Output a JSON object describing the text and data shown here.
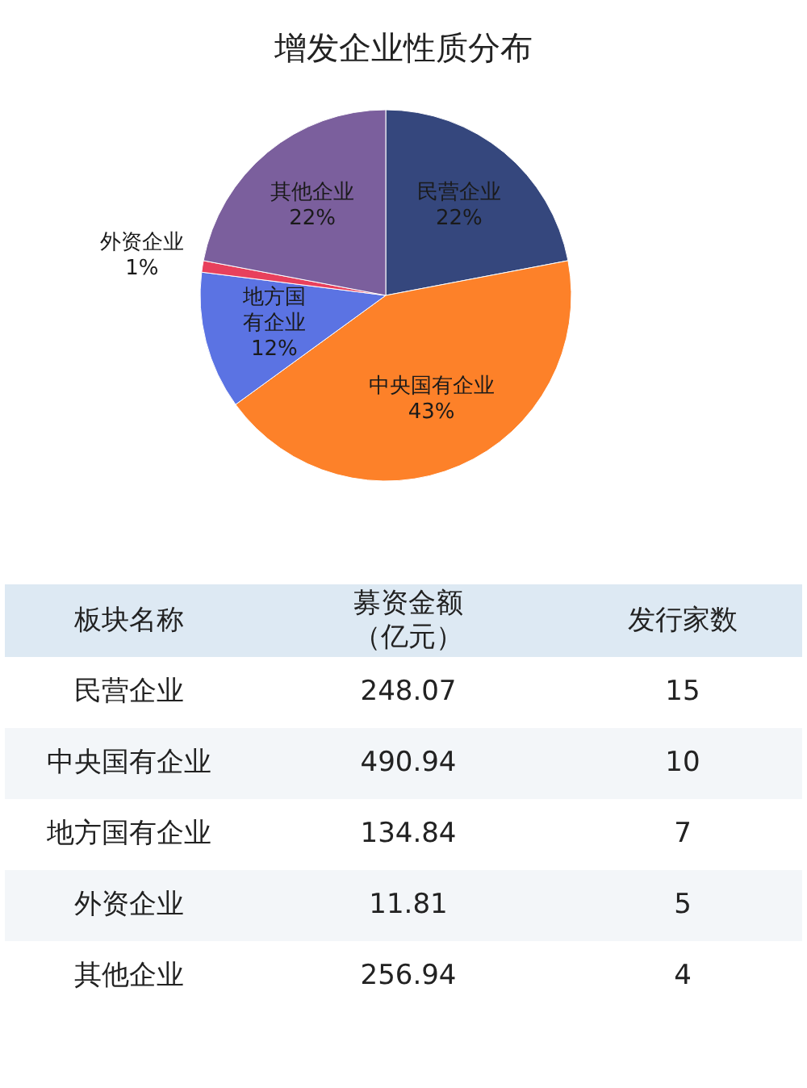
{
  "chart_data": [
    {
      "type": "pie",
      "title": "增发企业性质分布",
      "categories": [
        "民营企业",
        "中央国有企业",
        "地方国有企业",
        "外资企业",
        "其他企业"
      ],
      "values": [
        22,
        43,
        12,
        1,
        22
      ],
      "value_labels": [
        "22%",
        "43%",
        "12%",
        "1%",
        "22%"
      ],
      "colors": [
        "#35477d",
        "#fd8129",
        "#5b73e3",
        "#e8405c",
        "#7b5f9d"
      ]
    },
    {
      "type": "other",
      "xlabel": "板块名称",
      "categories": [
        "民营企业",
        "中央国有企业",
        "地方国有企业",
        "外资企业",
        "其他企业"
      ],
      "series": [
        {
          "name": "募资金额（亿元）",
          "values": [
            248.07,
            490.94,
            134.84,
            11.81,
            256.94
          ]
        },
        {
          "name": "发行家数",
          "values": [
            15,
            10,
            7,
            5,
            4
          ]
        }
      ],
      "data_labels": true
    }
  ]
}
